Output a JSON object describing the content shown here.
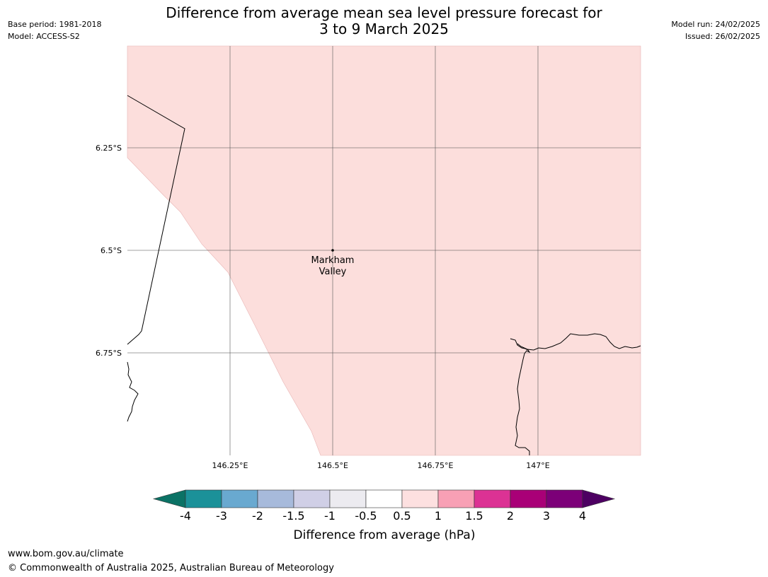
{
  "header": {
    "title_line1": "Difference from average mean sea level pressure forecast for",
    "title_line2": "3 to 9 March 2025",
    "base_period": "Base period: 1981-2018",
    "model": "Model: ACCESS-S2",
    "model_run": "Model run: 24/02/2025",
    "issued": "Issued: 26/02/2025"
  },
  "map": {
    "lon_ticks": [
      "146.25°E",
      "146.5°E",
      "146.75°E",
      "147°E"
    ],
    "lat_ticks": [
      "6.25°S",
      "6.5°S",
      "6.75°S"
    ],
    "place": {
      "name_line1": "Markham",
      "name_line2": "Valley"
    },
    "shading_color": "#fcdedc"
  },
  "colorbar": {
    "label": "Difference from average (hPa)",
    "ticks": [
      "-4",
      "-3",
      "-2",
      "-1.5",
      "-1",
      "-0.5",
      "0.5",
      "1",
      "1.5",
      "2",
      "3",
      "4"
    ],
    "colors": [
      "#0b7265",
      "#1b9199",
      "#69a9d0",
      "#a7badb",
      "#d0cfe6",
      "#ecebf0",
      "#ffffff",
      "#fde0e0",
      "#f8a0b5",
      "#dc3294",
      "#a90077",
      "#7c0078",
      "#4d0062"
    ]
  },
  "footer": {
    "url": "www.bom.gov.au/climate",
    "copyright": "© Commonwealth of Australia 2025, Australian Bureau of Meteorology"
  }
}
